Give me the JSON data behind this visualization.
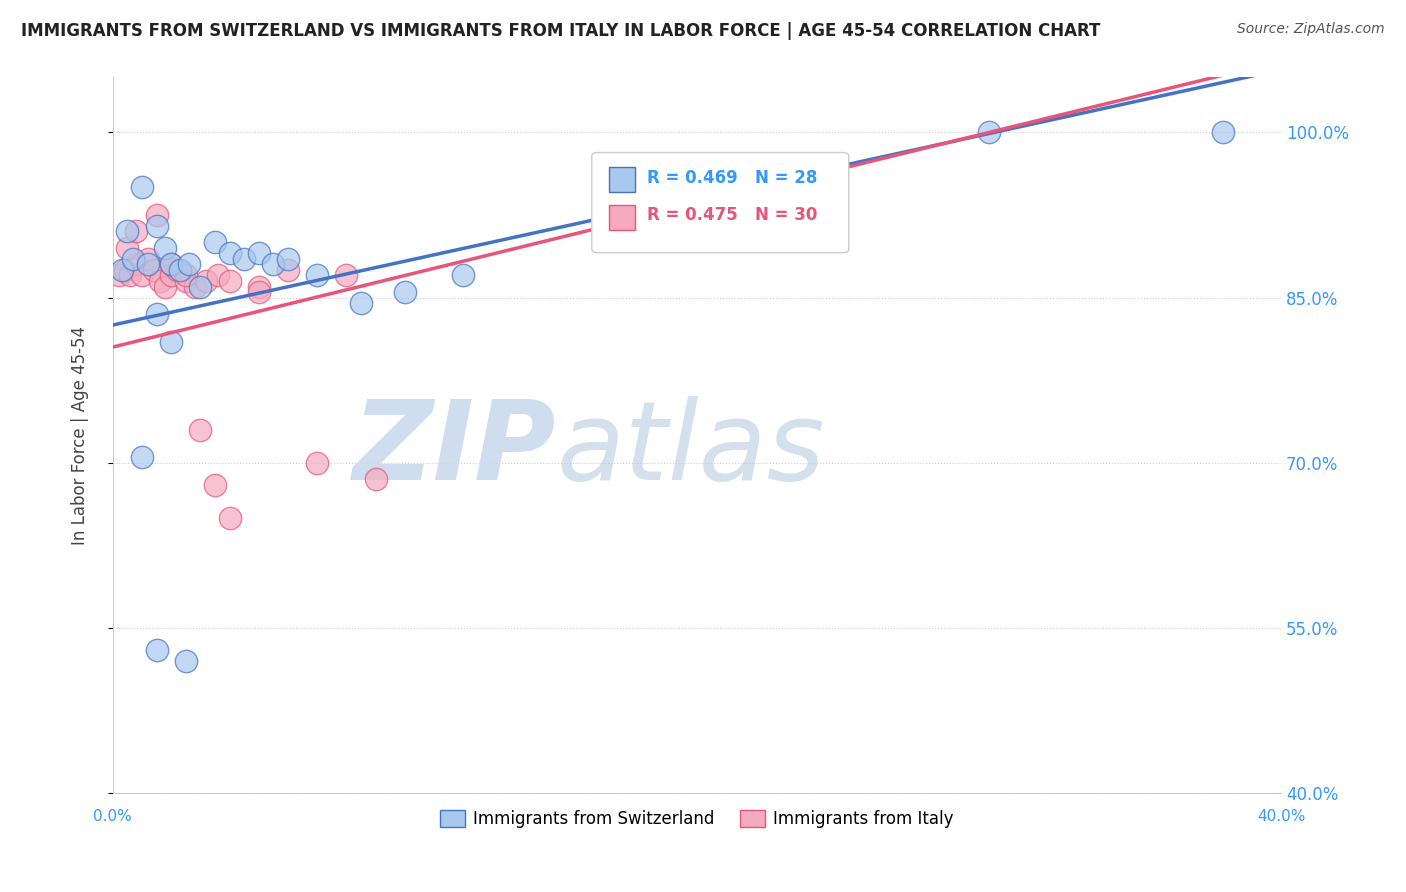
{
  "title": "IMMIGRANTS FROM SWITZERLAND VS IMMIGRANTS FROM ITALY IN LABOR FORCE | AGE 45-54 CORRELATION CHART",
  "source": "Source: ZipAtlas.com",
  "ylabel": "In Labor Force | Age 45-54",
  "yticks": [
    100.0,
    85.0,
    70.0,
    55.0,
    40.0
  ],
  "ytick_labels": [
    "100.0%",
    "85.0%",
    "70.0%",
    "55.0%",
    "40.0%"
  ],
  "xlim": [
    0.0,
    40.0
  ],
  "ylim": [
    40.0,
    105.0
  ],
  "legend_r1": "R = 0.469",
  "legend_n1": "N = 28",
  "legend_r2": "R = 0.475",
  "legend_n2": "N = 30",
  "color_swiss": "#A8C8EE",
  "color_italy": "#F5AABF",
  "color_swiss_line": "#4472C4",
  "color_italy_line": "#E8547A",
  "swiss_points": [
    [
      0.3,
      87.5
    ],
    [
      0.5,
      91.0
    ],
    [
      0.7,
      88.5
    ],
    [
      1.0,
      95.0
    ],
    [
      1.2,
      88.0
    ],
    [
      1.5,
      91.5
    ],
    [
      1.8,
      89.5
    ],
    [
      2.0,
      88.0
    ],
    [
      2.3,
      87.5
    ],
    [
      2.6,
      88.0
    ],
    [
      3.0,
      86.0
    ],
    [
      3.5,
      90.0
    ],
    [
      4.0,
      89.0
    ],
    [
      4.5,
      88.5
    ],
    [
      5.0,
      89.0
    ],
    [
      5.5,
      88.0
    ],
    [
      6.0,
      88.5
    ],
    [
      7.0,
      87.0
    ],
    [
      8.5,
      84.5
    ],
    [
      1.5,
      83.5
    ],
    [
      2.0,
      81.0
    ],
    [
      1.0,
      70.5
    ],
    [
      1.5,
      53.0
    ],
    [
      2.5,
      52.0
    ],
    [
      30.0,
      100.0
    ],
    [
      38.0,
      100.0
    ],
    [
      10.0,
      85.5
    ],
    [
      12.0,
      87.0
    ]
  ],
  "italy_points": [
    [
      0.2,
      87.0
    ],
    [
      0.4,
      87.5
    ],
    [
      0.6,
      87.0
    ],
    [
      0.8,
      88.0
    ],
    [
      1.0,
      87.0
    ],
    [
      1.2,
      88.5
    ],
    [
      1.4,
      87.5
    ],
    [
      1.6,
      86.5
    ],
    [
      1.8,
      86.0
    ],
    [
      2.0,
      87.0
    ],
    [
      2.2,
      87.5
    ],
    [
      2.5,
      86.5
    ],
    [
      2.8,
      86.0
    ],
    [
      3.2,
      86.5
    ],
    [
      3.6,
      87.0
    ],
    [
      4.0,
      86.5
    ],
    [
      5.0,
      86.0
    ],
    [
      6.0,
      87.5
    ],
    [
      8.0,
      87.0
    ],
    [
      3.0,
      73.0
    ],
    [
      5.0,
      85.5
    ],
    [
      7.0,
      70.0
    ],
    [
      9.0,
      68.5
    ],
    [
      3.5,
      68.0
    ],
    [
      4.0,
      65.0
    ],
    [
      0.5,
      89.5
    ],
    [
      0.8,
      91.0
    ],
    [
      1.5,
      92.5
    ],
    [
      2.0,
      88.0
    ],
    [
      2.5,
      87.0
    ]
  ]
}
